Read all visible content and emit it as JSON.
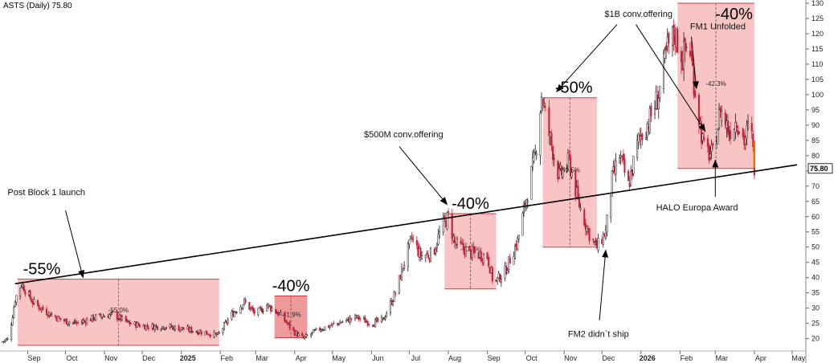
{
  "chart_data": {
    "type": "candlestick",
    "ticker": "ASTS (Daily) 75.80",
    "last_price": "75.80",
    "y_axis": {
      "ylim": [
        17,
        130
      ],
      "ticks": [
        20,
        25,
        30,
        35,
        40,
        45,
        50,
        55,
        60,
        65,
        70,
        75,
        80,
        85,
        90,
        95,
        100,
        105,
        110,
        115,
        120,
        125,
        130
      ]
    },
    "x_axis": {
      "start": "2024-08-10",
      "end": "2026-05-10",
      "ticks": [
        {
          "label": "Sep",
          "date": "2024-09-01",
          "bold": false
        },
        {
          "label": "Oct",
          "date": "2024-10-01",
          "bold": false
        },
        {
          "label": "Nov",
          "date": "2024-11-01",
          "bold": false
        },
        {
          "label": "Dec",
          "date": "2024-12-01",
          "bold": false
        },
        {
          "label": "2025",
          "date": "2025-01-01",
          "bold": true
        },
        {
          "label": "Feb",
          "date": "2025-02-01",
          "bold": false
        },
        {
          "label": "Mar",
          "date": "2025-03-01",
          "bold": false
        },
        {
          "label": "Apr",
          "date": "2025-04-01",
          "bold": false
        },
        {
          "label": "May",
          "date": "2025-05-01",
          "bold": false
        },
        {
          "label": "Jun",
          "date": "2025-06-01",
          "bold": false
        },
        {
          "label": "Jul",
          "date": "2025-07-01",
          "bold": false
        },
        {
          "label": "Aug",
          "date": "2025-08-01",
          "bold": false
        },
        {
          "label": "Sep",
          "date": "2025-09-01",
          "bold": false
        },
        {
          "label": "Oct",
          "date": "2025-10-01",
          "bold": false
        },
        {
          "label": "Nov",
          "date": "2025-11-01",
          "bold": false
        },
        {
          "label": "Dec",
          "date": "2025-12-01",
          "bold": false
        },
        {
          "label": "2026",
          "date": "2026-01-01",
          "bold": true
        },
        {
          "label": "Feb",
          "date": "2026-02-01",
          "bold": false
        },
        {
          "label": "Mar",
          "date": "2026-03-01",
          "bold": false
        },
        {
          "label": "Apr",
          "date": "2026-04-01",
          "bold": false
        },
        {
          "label": "May",
          "date": "2026-05-01",
          "bold": false
        }
      ]
    },
    "price_path": [
      {
        "date": "2024-08-12",
        "price": 19
      },
      {
        "date": "2024-08-17",
        "price": 20
      },
      {
        "date": "2024-08-22",
        "price": 33
      },
      {
        "date": "2024-08-27",
        "price": 38
      },
      {
        "date": "2024-09-05",
        "price": 32
      },
      {
        "date": "2024-09-15",
        "price": 29
      },
      {
        "date": "2024-09-28",
        "price": 26
      },
      {
        "date": "2024-10-10",
        "price": 25
      },
      {
        "date": "2024-10-25",
        "price": 27
      },
      {
        "date": "2024-11-08",
        "price": 28
      },
      {
        "date": "2024-11-20",
        "price": 25
      },
      {
        "date": "2024-12-05",
        "price": 24
      },
      {
        "date": "2024-12-20",
        "price": 24
      },
      {
        "date": "2025-01-05",
        "price": 23
      },
      {
        "date": "2025-01-20",
        "price": 22
      },
      {
        "date": "2025-01-30",
        "price": 21
      },
      {
        "date": "2025-02-10",
        "price": 28
      },
      {
        "date": "2025-02-20",
        "price": 32
      },
      {
        "date": "2025-03-01",
        "price": 28
      },
      {
        "date": "2025-03-10",
        "price": 31
      },
      {
        "date": "2025-03-20",
        "price": 28
      },
      {
        "date": "2025-04-01",
        "price": 22
      },
      {
        "date": "2025-04-08",
        "price": 20
      },
      {
        "date": "2025-04-20",
        "price": 23
      },
      {
        "date": "2025-05-05",
        "price": 25
      },
      {
        "date": "2025-05-20",
        "price": 27
      },
      {
        "date": "2025-06-01",
        "price": 25
      },
      {
        "date": "2025-06-10",
        "price": 26
      },
      {
        "date": "2025-06-20",
        "price": 35
      },
      {
        "date": "2025-06-27",
        "price": 45
      },
      {
        "date": "2025-07-03",
        "price": 53
      },
      {
        "date": "2025-07-10",
        "price": 47
      },
      {
        "date": "2025-07-20",
        "price": 48
      },
      {
        "date": "2025-07-27",
        "price": 57
      },
      {
        "date": "2025-08-01",
        "price": 60
      },
      {
        "date": "2025-08-06",
        "price": 51
      },
      {
        "date": "2025-08-20",
        "price": 48
      },
      {
        "date": "2025-09-01",
        "price": 47
      },
      {
        "date": "2025-09-06",
        "price": 38
      },
      {
        "date": "2025-09-15",
        "price": 42
      },
      {
        "date": "2025-09-25",
        "price": 52
      },
      {
        "date": "2025-10-03",
        "price": 68
      },
      {
        "date": "2025-10-09",
        "price": 80
      },
      {
        "date": "2025-10-14",
        "price": 100
      },
      {
        "date": "2025-10-20",
        "price": 87
      },
      {
        "date": "2025-10-28",
        "price": 73
      },
      {
        "date": "2025-11-05",
        "price": 78
      },
      {
        "date": "2025-11-12",
        "price": 65
      },
      {
        "date": "2025-11-22",
        "price": 53
      },
      {
        "date": "2025-11-27",
        "price": 50
      },
      {
        "date": "2025-12-04",
        "price": 55
      },
      {
        "date": "2025-12-09",
        "price": 72
      },
      {
        "date": "2025-12-15",
        "price": 80
      },
      {
        "date": "2025-12-22",
        "price": 70
      },
      {
        "date": "2025-12-30",
        "price": 85
      },
      {
        "date": "2026-01-08",
        "price": 92
      },
      {
        "date": "2026-01-15",
        "price": 100
      },
      {
        "date": "2026-01-22",
        "price": 115
      },
      {
        "date": "2026-01-28",
        "price": 120
      },
      {
        "date": "2026-02-03",
        "price": 112
      },
      {
        "date": "2026-02-08",
        "price": 118
      },
      {
        "date": "2026-02-14",
        "price": 98
      },
      {
        "date": "2026-02-20",
        "price": 82
      },
      {
        "date": "2026-02-27",
        "price": 80
      },
      {
        "date": "2026-03-05",
        "price": 95
      },
      {
        "date": "2026-03-12",
        "price": 88
      },
      {
        "date": "2026-03-18",
        "price": 92
      },
      {
        "date": "2026-03-24",
        "price": 85
      },
      {
        "date": "2026-03-29",
        "price": 91
      },
      {
        "date": "2026-04-01",
        "price": 76
      }
    ],
    "trendline": {
      "from": {
        "date": "2024-08-22",
        "price": 38
      },
      "to": {
        "date": "2026-05-05",
        "price": 77
      }
    },
    "drawdown_boxes": [
      {
        "start": "2024-08-24",
        "end": "2025-01-31",
        "high": 39.5,
        "low": 17.8,
        "label": "-55%",
        "small_label": "-55.0%",
        "color": "#f4a5a5",
        "opacity": 0.65
      },
      {
        "start": "2025-03-16",
        "end": "2025-04-11",
        "high": 34,
        "low": 20.3,
        "label": "-40%",
        "small_label": "-41.9%",
        "color": "#e87878",
        "opacity": 0.75
      },
      {
        "start": "2025-07-29",
        "end": "2025-09-08",
        "high": 61,
        "low": 36.3,
        "label": "-40%",
        "small_label": "-40.5%",
        "color": "#f4a5a5",
        "opacity": 0.65
      },
      {
        "start": "2025-10-15",
        "end": "2025-11-27",
        "high": 99,
        "low": 50,
        "label": "-50%",
        "small_label": "-49.5%",
        "color": "#f4a5a5",
        "opacity": 0.65
      },
      {
        "start": "2026-01-30",
        "end": "2026-04-01",
        "high": 130,
        "low": 75.8,
        "label": "-40%",
        "small_label": "-42.3%",
        "color": "#f4a5a5",
        "opacity": 0.65
      }
    ],
    "annotations": [
      {
        "text": "Post Block 1 launch",
        "text_date": "2024-08-16",
        "text_price": 67,
        "arrow_from": {
          "date": "2024-10-01",
          "price": 62
        },
        "arrow_to": {
          "date": "2024-10-15",
          "price": 40
        }
      },
      {
        "text": "$500M conv.offering",
        "text_date": "2025-05-26",
        "text_price": 86,
        "arrow_from": {
          "date": "2025-06-23",
          "price": 83
        },
        "arrow_to": {
          "date": "2025-07-31",
          "price": 64
        }
      },
      {
        "text": "$1B conv.offering",
        "text_date": "2025-12-03",
        "text_price": 125.5,
        "arrow_from": {
          "date": "2025-12-13",
          "price": 123
        },
        "arrow_to": {
          "date": "2025-10-26",
          "price": 101
        }
      },
      {
        "text": "",
        "arrow_from": {
          "date": "2025-12-28",
          "price": 123
        },
        "arrow_to": {
          "date": "2026-02-21",
          "price": 88
        }
      },
      {
        "text": "FM1 Unfolded",
        "text_date": "2026-02-09",
        "text_price": 121.5,
        "arrow_from": {
          "date": "2026-02-10",
          "price": 119
        },
        "arrow_to": {
          "date": "2026-02-14",
          "price": 102
        }
      },
      {
        "text": "HALO Europa Award",
        "text_date": "2026-01-13",
        "text_price": 62,
        "arrow_from": {
          "date": "2026-03-01",
          "price": 66.5
        },
        "arrow_to": {
          "date": "2026-03-01",
          "price": 78.5
        }
      },
      {
        "text": "FM2 didn`t ship",
        "text_date": "2025-11-04",
        "text_price": 20.5,
        "arrow_from": {
          "date": "2025-11-29",
          "price": 26
        },
        "arrow_to": {
          "date": "2025-12-04",
          "price": 49
        }
      }
    ]
  }
}
